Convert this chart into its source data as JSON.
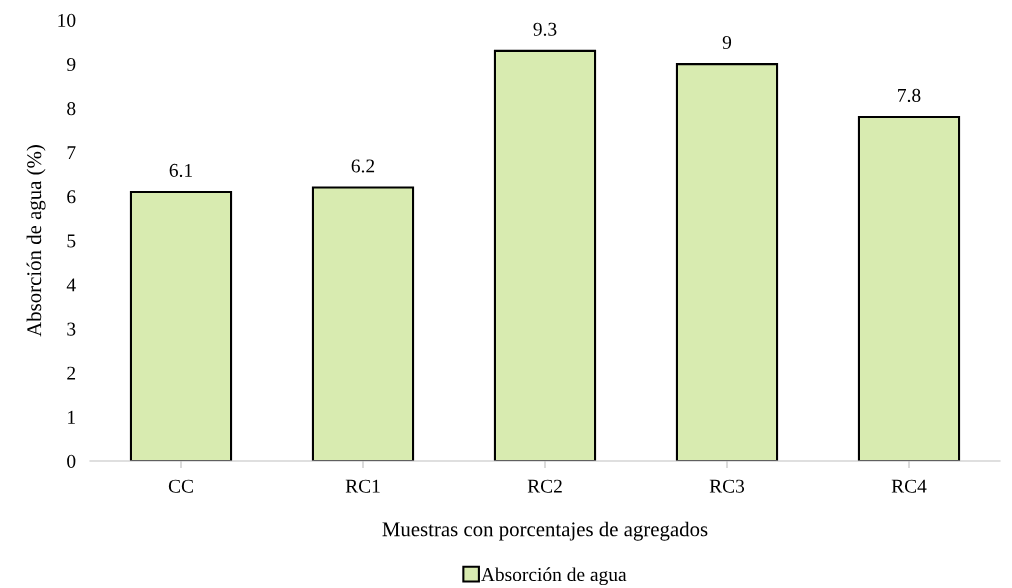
{
  "chart_data": {
    "type": "bar",
    "xlabel": "Muestras con porcentajes de agregados",
    "ylabel": "Absorción de agua (%)",
    "categories": [
      "CC",
      "RC1",
      "RC2",
      "RC3",
      "RC4"
    ],
    "series": [
      {
        "name": "Absorción de agua",
        "color": "#d8ebb0",
        "values": [
          6.1,
          6.2,
          9.3,
          9,
          7.8
        ]
      }
    ],
    "ylim": [
      0,
      10
    ],
    "yticks": [
      0,
      1,
      2,
      3,
      4,
      5,
      6,
      7,
      8,
      9,
      10
    ],
    "data_labels": true,
    "grid": false,
    "legend": "bottom"
  }
}
